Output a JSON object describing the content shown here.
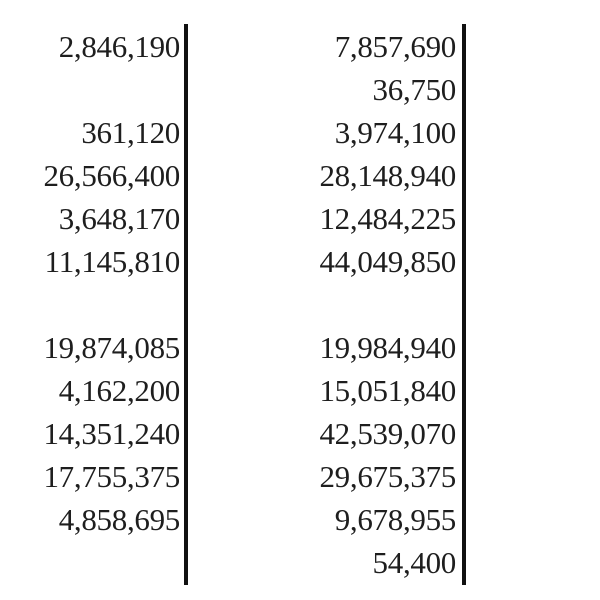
{
  "table": {
    "rows": [
      {
        "left": "2,846,190",
        "right": "7,857,690"
      },
      {
        "left": "",
        "right": "36,750"
      },
      {
        "left": "361,120",
        "right": "3,974,100"
      },
      {
        "left": "26,566,400",
        "right": "28,148,940"
      },
      {
        "left": "3,648,170",
        "right": "12,484,225"
      },
      {
        "left": "11,145,810",
        "right": "44,049,850"
      },
      {
        "left": "",
        "right": ""
      },
      {
        "left": "19,874,085",
        "right": "19,984,940"
      },
      {
        "left": "4,162,200",
        "right": "15,051,840"
      },
      {
        "left": "14,351,240",
        "right": "42,539,070"
      },
      {
        "left": "17,755,375",
        "right": "29,675,375"
      },
      {
        "left": "4,858,695",
        "right": "9,678,955"
      },
      {
        "left": "",
        "right": "54,400"
      }
    ]
  }
}
